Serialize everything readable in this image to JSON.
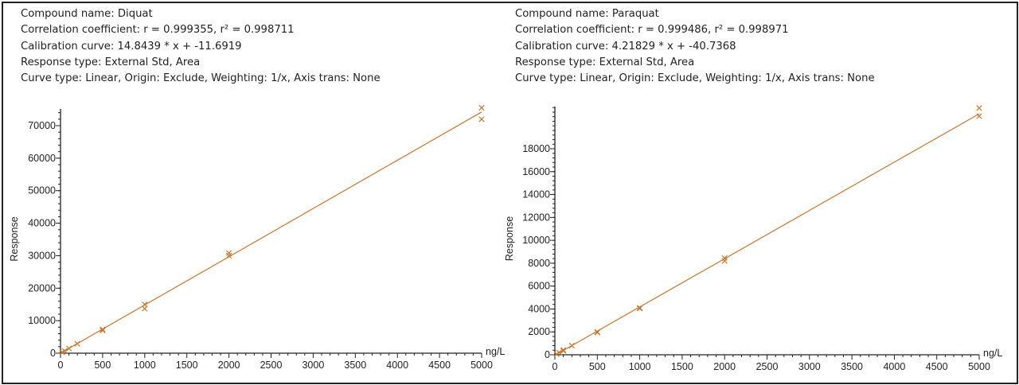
{
  "colors": {
    "series": "#c8752f",
    "axis": "#222222"
  },
  "panels": [
    {
      "info": {
        "compound": "Compound name: Diquat",
        "correlation": "Correlation coefficient: r = 0.999355, r² = 0.998711",
        "calibration": "Calibration curve: 14.8439 * x + -11.6919",
        "response_type": "Response type: External Std, Area",
        "curve_type": "Curve type: Linear, Origin: Exclude, Weighting: 1/x, Axis trans: None"
      }
    },
    {
      "info": {
        "compound": "Compound name: Paraquat",
        "correlation": "Correlation coefficient: r = 0.999486, r² = 0.998971",
        "calibration": "Calibration curve: 4.21829 * x + -40.7368",
        "response_type": "Response type: External Std, Area",
        "curve_type": "Curve type: Linear, Origin: Exclude, Weighting: 1/x, Axis trans: None"
      }
    }
  ],
  "chart_data": [
    {
      "type": "scatter",
      "title": "",
      "xlabel": "ng/L",
      "ylabel": "Response",
      "xlim": [
        0,
        5000
      ],
      "ylim": [
        0,
        75000
      ],
      "x_ticks": [
        "0",
        "500",
        "1000",
        "1500",
        "2000",
        "2500",
        "3000",
        "3500",
        "4000",
        "4500",
        "5000"
      ],
      "y_ticks": [
        "0",
        "10000",
        "20000",
        "30000",
        "40000",
        "50000",
        "60000",
        "70000"
      ],
      "fit": {
        "slope": 14.8439,
        "intercept": -11.6919
      },
      "points": [
        [
          20,
          300
        ],
        [
          50,
          700
        ],
        [
          100,
          1450
        ],
        [
          200,
          2900
        ],
        [
          500,
          7000
        ],
        [
          500,
          7300
        ],
        [
          1000,
          13700
        ],
        [
          1000,
          15000
        ],
        [
          2000,
          30000
        ],
        [
          2000,
          30800
        ],
        [
          5000,
          72000
        ],
        [
          5000,
          75500
        ]
      ],
      "grid": false
    },
    {
      "type": "scatter",
      "title": "",
      "xlabel": "ng/L",
      "ylabel": "Response",
      "xlim": [
        0,
        5000
      ],
      "ylim": [
        0,
        21500
      ],
      "x_ticks": [
        "0",
        "500",
        "1000",
        "1500",
        "2000",
        "2500",
        "3000",
        "3500",
        "4000",
        "4500",
        "5000"
      ],
      "y_ticks": [
        "0",
        "2000",
        "4000",
        "6000",
        "8000",
        "10000",
        "12000",
        "14000",
        "16000",
        "18000"
      ],
      "fit": {
        "slope": 4.21829,
        "intercept": -40.7368
      },
      "points": [
        [
          20,
          50
        ],
        [
          50,
          200
        ],
        [
          100,
          350
        ],
        [
          100,
          420
        ],
        [
          200,
          800
        ],
        [
          500,
          1950
        ],
        [
          500,
          2000
        ],
        [
          1000,
          4050
        ],
        [
          1000,
          4100
        ],
        [
          2000,
          8200
        ],
        [
          2000,
          8450
        ],
        [
          5000,
          20850
        ],
        [
          5000,
          21550
        ]
      ],
      "grid": false
    }
  ]
}
